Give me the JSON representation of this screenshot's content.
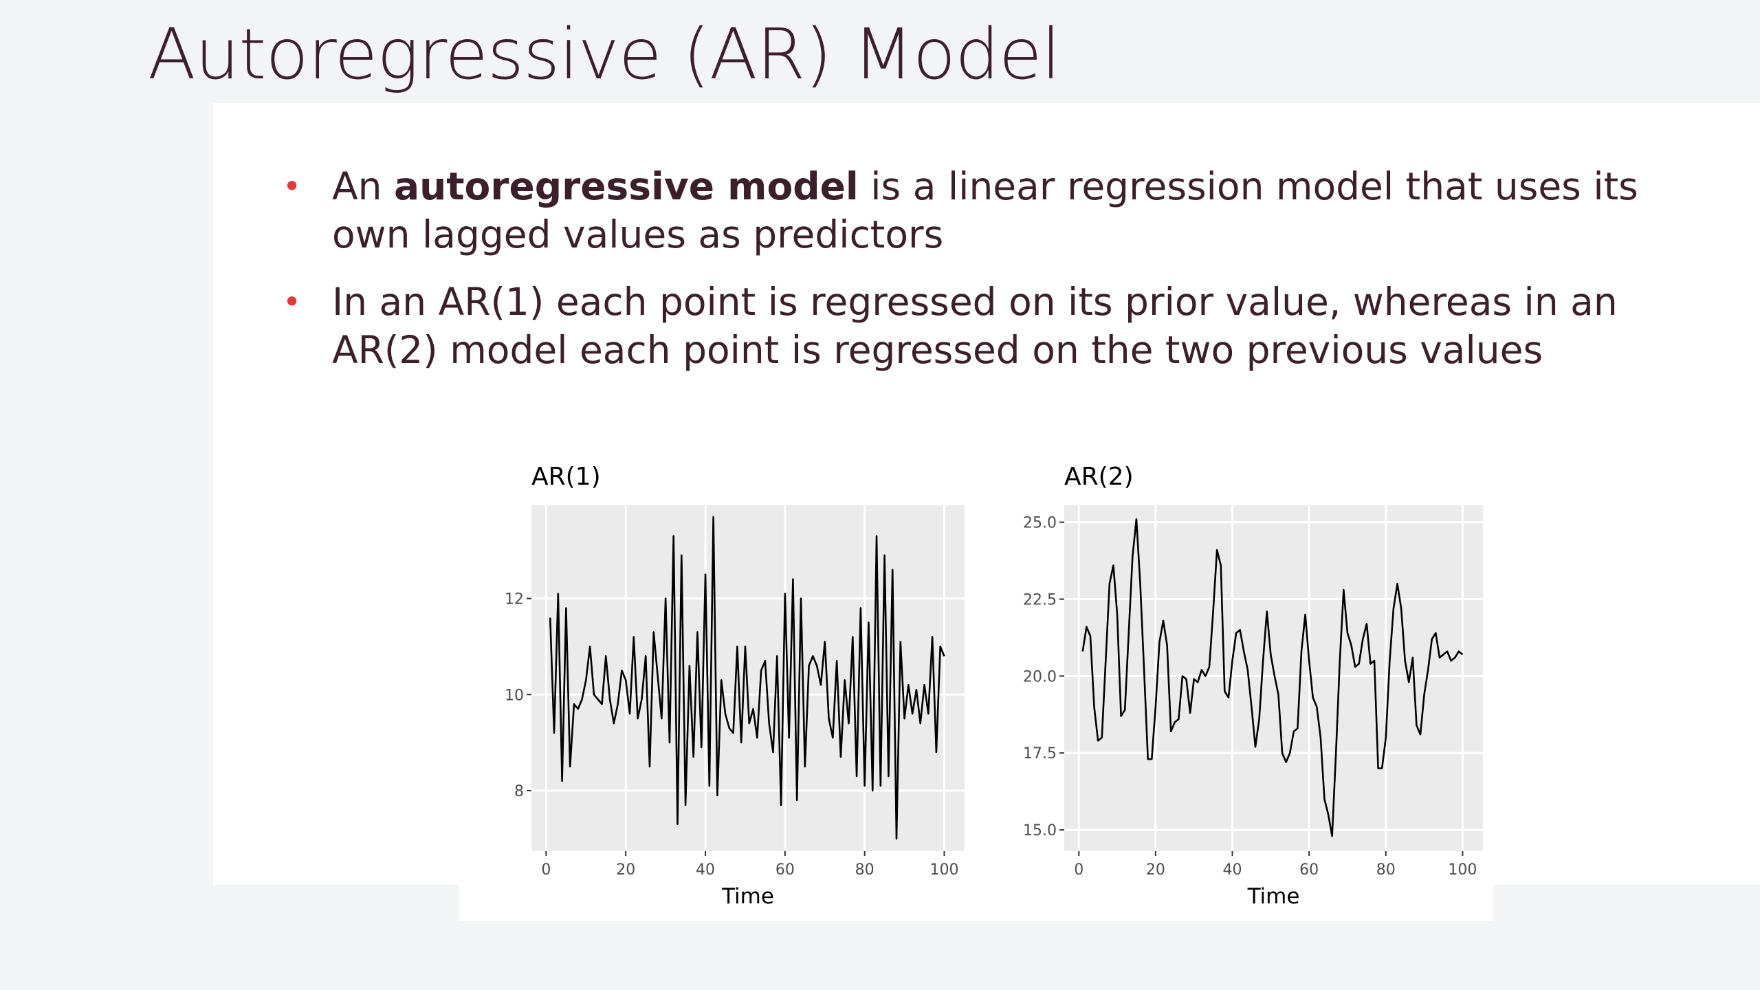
{
  "slide": {
    "title": "Autoregressive (AR) Model",
    "bullets": [
      [
        "An ",
        "autoregressive model",
        " is a linear regression model that uses its own lagged values as predictors"
      ],
      [
        "In an AR(1) each point is regressed on its prior value, whereas in an AR(2) model each point is regressed on the two previous values"
      ]
    ]
  },
  "chart_data": [
    {
      "type": "line",
      "title": "AR(1)",
      "xlabel": "Time",
      "color": "#000000",
      "grid": true,
      "x": [
        1,
        2,
        3,
        4,
        5,
        6,
        7,
        8,
        9,
        10,
        11,
        12,
        13,
        14,
        15,
        16,
        17,
        18,
        19,
        20,
        21,
        22,
        23,
        24,
        25,
        26,
        27,
        28,
        29,
        30,
        31,
        32,
        33,
        34,
        35,
        36,
        37,
        38,
        39,
        40,
        41,
        42,
        43,
        44,
        45,
        46,
        47,
        48,
        49,
        50,
        51,
        52,
        53,
        54,
        55,
        56,
        57,
        58,
        59,
        60,
        61,
        62,
        63,
        64,
        65,
        66,
        67,
        68,
        69,
        70,
        71,
        72,
        73,
        74,
        75,
        76,
        77,
        78,
        79,
        80,
        81,
        82,
        83,
        84,
        85,
        86,
        87,
        88,
        89,
        90,
        91,
        92,
        93,
        94,
        95,
        96,
        97,
        98,
        99,
        100
      ],
      "values": [
        11.6,
        9.2,
        12.1,
        8.2,
        11.8,
        8.5,
        9.8,
        9.7,
        9.9,
        10.3,
        11.0,
        10.0,
        9.9,
        9.8,
        10.8,
        9.9,
        9.4,
        9.8,
        10.5,
        10.3,
        9.6,
        11.2,
        9.5,
        9.9,
        10.8,
        8.5,
        11.3,
        10.4,
        9.5,
        12.0,
        9.0,
        13.3,
        7.3,
        12.9,
        7.7,
        10.6,
        8.7,
        11.3,
        8.9,
        12.5,
        8.1,
        13.7,
        7.9,
        10.3,
        9.6,
        9.3,
        9.2,
        11.0,
        9.0,
        11.0,
        9.4,
        9.7,
        9.1,
        10.5,
        10.7,
        9.4,
        8.8,
        10.8,
        7.7,
        12.1,
        9.1,
        12.4,
        7.8,
        12.0,
        8.5,
        10.6,
        10.8,
        10.6,
        10.2,
        11.1,
        9.5,
        9.1,
        10.7,
        8.7,
        10.3,
        9.4,
        11.2,
        8.3,
        11.8,
        8.1,
        11.5,
        8.0,
        13.3,
        8.1,
        12.9,
        8.3,
        12.6,
        7.0,
        11.1,
        9.5,
        10.2,
        9.6,
        10.1,
        9.4,
        10.2,
        9.6,
        11.2,
        8.8,
        11.0,
        10.8
      ],
      "xlim": [
        -3.7,
        105.1
      ],
      "ylim": [
        6.74,
        13.94
      ],
      "xticks": [
        0,
        20,
        40,
        60,
        80,
        100
      ],
      "yticks": [
        8,
        10,
        12
      ]
    },
    {
      "type": "line",
      "title": "AR(2)",
      "xlabel": "Time",
      "color": "#000000",
      "grid": true,
      "x": [
        1,
        2,
        3,
        4,
        5,
        6,
        7,
        8,
        9,
        10,
        11,
        12,
        13,
        14,
        15,
        16,
        17,
        18,
        19,
        20,
        21,
        22,
        23,
        24,
        25,
        26,
        27,
        28,
        29,
        30,
        31,
        32,
        33,
        34,
        35,
        36,
        37,
        38,
        39,
        40,
        41,
        42,
        43,
        44,
        45,
        46,
        47,
        48,
        49,
        50,
        51,
        52,
        53,
        54,
        55,
        56,
        57,
        58,
        59,
        60,
        61,
        62,
        63,
        64,
        65,
        66,
        67,
        68,
        69,
        70,
        71,
        72,
        73,
        74,
        75,
        76,
        77,
        78,
        79,
        80,
        81,
        82,
        83,
        84,
        85,
        86,
        87,
        88,
        89,
        90,
        91,
        92,
        93,
        94,
        95,
        96,
        97,
        98,
        99,
        100
      ],
      "values": [
        20.8,
        21.6,
        21.3,
        19.0,
        17.9,
        18.0,
        20.5,
        23.0,
        23.6,
        22.0,
        18.7,
        18.9,
        21.4,
        23.9,
        25.1,
        23.0,
        20.2,
        17.3,
        17.3,
        19.0,
        21.1,
        21.8,
        21.0,
        18.2,
        18.5,
        18.6,
        20.0,
        19.9,
        18.8,
        19.9,
        19.8,
        20.2,
        20.0,
        20.3,
        22.1,
        24.1,
        23.6,
        19.5,
        19.3,
        20.5,
        21.4,
        21.5,
        20.8,
        20.2,
        19.0,
        17.7,
        18.6,
        20.5,
        22.1,
        20.7,
        20.0,
        19.4,
        17.5,
        17.2,
        17.5,
        18.2,
        18.3,
        20.8,
        22.0,
        20.5,
        19.3,
        19.0,
        18.0,
        16.0,
        15.5,
        14.8,
        17.5,
        20.5,
        22.8,
        21.4,
        21.0,
        20.3,
        20.4,
        21.2,
        21.7,
        20.4,
        20.5,
        17.0,
        17.0,
        18.0,
        20.5,
        22.2,
        23.0,
        22.2,
        20.5,
        19.8,
        20.6,
        18.4,
        18.1,
        19.4,
        20.2,
        21.2,
        21.4,
        20.6,
        20.7,
        20.8,
        20.5,
        20.6,
        20.8,
        20.7
      ],
      "xlim": [
        -3.8,
        105.3
      ],
      "ylim": [
        14.31,
        25.55
      ],
      "xticks": [
        0,
        20,
        40,
        60,
        80,
        100
      ],
      "yticks": [
        {
          "value": 15,
          "label": "15.0"
        },
        {
          "value": 17.5,
          "label": "17.5"
        },
        {
          "value": 20,
          "label": "20.0"
        },
        {
          "value": 22.5,
          "label": "22.5"
        },
        {
          "value": 25,
          "label": "25.0"
        }
      ]
    }
  ]
}
